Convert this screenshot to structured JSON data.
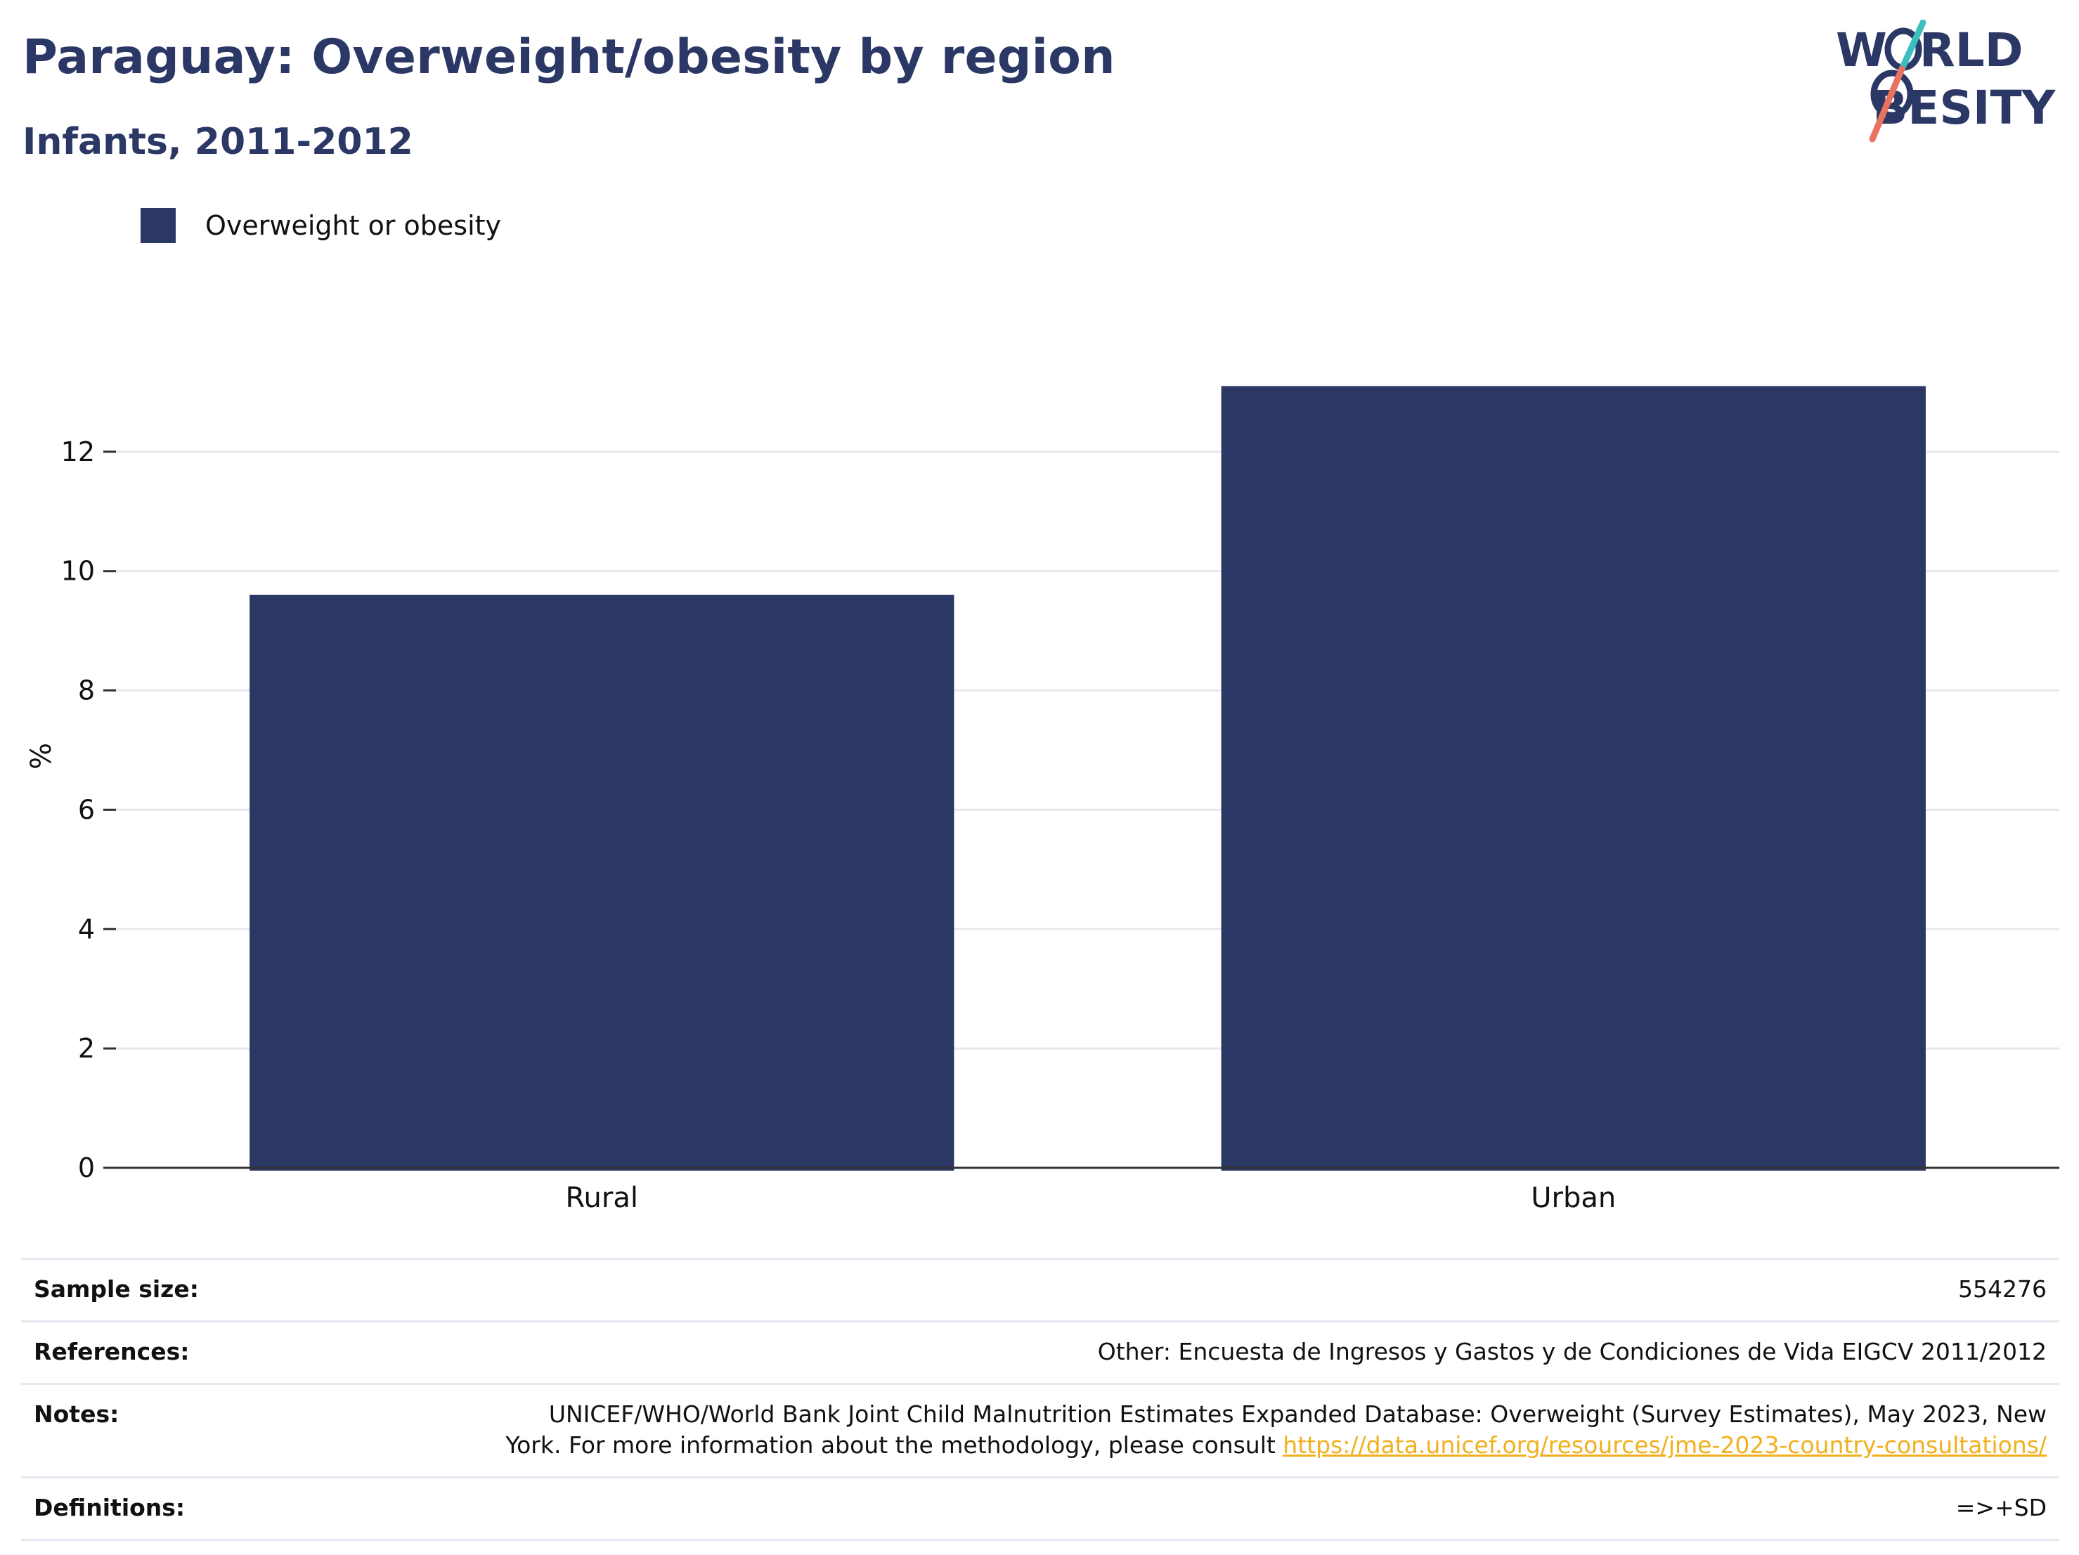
{
  "header": {
    "title": "Paraguay: Overweight/obesity by region",
    "subtitle": "Infants, 2011-2012"
  },
  "logo": {
    "line1": "W",
    "line1_rest": "RLD",
    "line2_rest": "BESITY",
    "colors": {
      "navy": "#2b3764",
      "teal": "#3dbfbf",
      "coral": "#e8735f"
    }
  },
  "legend": {
    "label": "Overweight or obesity",
    "color": "#2b3764"
  },
  "chart_data": {
    "type": "bar",
    "categories": [
      "Rural",
      "Urban"
    ],
    "series": [
      {
        "name": "Overweight or obesity",
        "values": [
          9.6,
          13.1
        ],
        "color": "#2b3764"
      }
    ],
    "ylabel": "%",
    "ylim": [
      0,
      13.8
    ],
    "yticks": [
      0,
      2,
      4,
      6,
      8,
      10,
      12
    ],
    "grid": true,
    "legend_position": "top-left"
  },
  "info": {
    "sample_size": {
      "label": "Sample size:",
      "value": "554276"
    },
    "references": {
      "label": "References:",
      "value": "Other: Encuesta de Ingresos y Gastos y de Condiciones de Vida EIGCV 2011/2012"
    },
    "notes": {
      "label": "Notes:",
      "line1": "UNICEF/WHO/World Bank Joint Child Malnutrition Estimates Expanded Database: Overweight (Survey Estimates), May 2023, New",
      "line2": "York. For more information about the methodology, please consult ",
      "link": "https://data.unicef.org/resources/jme-2023-country-consultations/"
    },
    "definitions": {
      "label": "Definitions:",
      "value": "=>+SD"
    }
  }
}
